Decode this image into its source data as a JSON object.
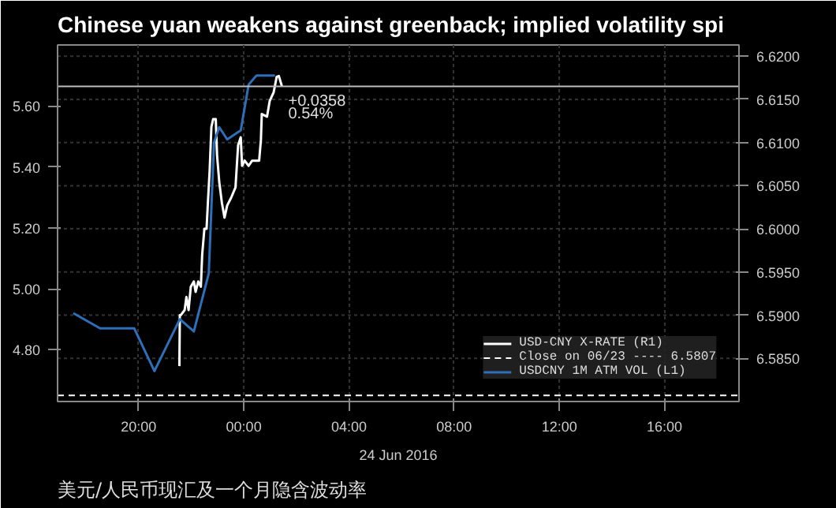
{
  "chart_data": {
    "type": "line",
    "title": "Chinese yuan weakens against greenback; implied volatility spi",
    "xlabel": "24 Jun 2016",
    "xlim": [
      "2016-06-23T16:55",
      "2016-06-24T18:50"
    ],
    "xticks": [
      {
        "value": "2016-06-23T20:00",
        "label": "20:00"
      },
      {
        "value": "2016-06-24T00:00",
        "label": "00:00"
      },
      {
        "value": "2016-06-24T04:00",
        "label": "04:00"
      },
      {
        "value": "2016-06-24T08:00",
        "label": "08:00"
      },
      {
        "value": "2016-06-24T12:00",
        "label": "12:00"
      },
      {
        "value": "2016-06-24T16:00",
        "label": "16:00"
      }
    ],
    "ylim": [
      4.63,
      5.8
    ],
    "yticks": [
      {
        "value": 4.8,
        "label": "4.80"
      },
      {
        "value": 5.0,
        "label": "5.00"
      },
      {
        "value": 5.2,
        "label": "5.20"
      },
      {
        "value": 5.4,
        "label": "5.40"
      },
      {
        "value": 5.6,
        "label": "5.60"
      }
    ],
    "y2lim": [
      6.58,
      6.6213
    ],
    "y2ticks": [
      {
        "value": 6.585,
        "label": "6.5850"
      },
      {
        "value": 6.59,
        "label": "6.5900"
      },
      {
        "value": 6.595,
        "label": "6.5950"
      },
      {
        "value": 6.6,
        "label": "6.6000"
      },
      {
        "value": 6.605,
        "label": "6.6050"
      },
      {
        "value": 6.61,
        "label": "6.6100"
      },
      {
        "value": 6.615,
        "label": "6.6150"
      },
      {
        "value": 6.62,
        "label": "6.6200"
      }
    ],
    "series": [
      {
        "name": "USD-CNY X-RATE (R1)",
        "color": "#ffffff",
        "axis": "y2",
        "x": [
          "2016-06-23T21:33",
          "2016-06-23T21:34",
          "2016-06-23T21:36",
          "2016-06-23T21:45",
          "2016-06-23T21:49",
          "2016-06-23T21:54",
          "2016-06-23T21:59",
          "2016-06-23T22:06",
          "2016-06-23T22:10",
          "2016-06-23T22:16",
          "2016-06-23T22:22",
          "2016-06-23T22:25",
          "2016-06-23T22:30",
          "2016-06-23T22:35",
          "2016-06-23T22:38",
          "2016-06-23T22:42",
          "2016-06-23T22:46",
          "2016-06-23T22:50",
          "2016-06-23T22:56",
          "2016-06-23T22:59",
          "2016-06-23T23:04",
          "2016-06-23T23:10",
          "2016-06-23T23:16",
          "2016-06-23T23:22",
          "2016-06-23T23:31",
          "2016-06-23T23:41",
          "2016-06-23T23:47",
          "2016-06-23T23:53",
          "2016-06-23T23:56",
          "2016-06-24T00:02",
          "2016-06-24T00:11",
          "2016-06-24T00:19",
          "2016-06-24T00:35",
          "2016-06-24T00:39",
          "2016-06-24T00:41",
          "2016-06-24T00:53",
          "2016-06-24T00:59",
          "2016-06-24T01:08",
          "2016-06-24T01:15",
          "2016-06-24T01:20",
          "2016-06-24T01:27"
        ],
        "values": [
          6.5841,
          6.59,
          6.59,
          6.5906,
          6.5921,
          6.5906,
          6.5933,
          6.5939,
          6.5927,
          6.5939,
          6.5933,
          6.597,
          6.6,
          6.6,
          6.603,
          6.6067,
          6.6118,
          6.6127,
          6.6127,
          6.6085,
          6.6054,
          6.603,
          6.6013,
          6.6027,
          6.6036,
          6.6048,
          6.6097,
          6.6106,
          6.6073,
          6.6079,
          6.6073,
          6.6079,
          6.6079,
          6.6103,
          6.6133,
          6.613,
          6.6148,
          6.6158,
          6.6176,
          6.6177,
          6.6165
        ]
      },
      {
        "name": "USDCNY 1M ATM VOL (L1)",
        "color": "#2e6fba",
        "x": [
          "2016-06-23T17:31",
          "2016-06-23T18:32",
          "2016-06-23T19:50",
          "2016-06-23T20:36",
          "2016-06-23T21:34",
          "2016-06-23T22:06",
          "2016-06-23T22:40",
          "2016-06-23T22:52",
          "2016-06-23T23:04",
          "2016-06-23T23:22",
          "2016-06-23T23:53",
          "2016-06-24T00:11",
          "2016-06-24T00:29",
          "2016-06-24T01:11"
        ],
        "values": [
          4.92,
          4.87,
          4.87,
          4.73,
          4.9,
          4.86,
          5.05,
          5.48,
          5.53,
          5.49,
          5.52,
          5.67,
          5.7,
          5.7
        ]
      }
    ],
    "ref_lines": [
      {
        "axis": "y2",
        "value": 6.5807,
        "label": "Close on 06/23 ---- 6.5807",
        "color": "#ffffff",
        "line_style": "dashed"
      },
      {
        "axis": "y2",
        "value": 6.6165,
        "color": "#bbbbbb"
      }
    ],
    "annotations": [
      "+0.0358",
      "0.54%",
      "美元/人民币现汇及一个月隐含波动率"
    ],
    "grid": true,
    "legend": "bottom right"
  }
}
